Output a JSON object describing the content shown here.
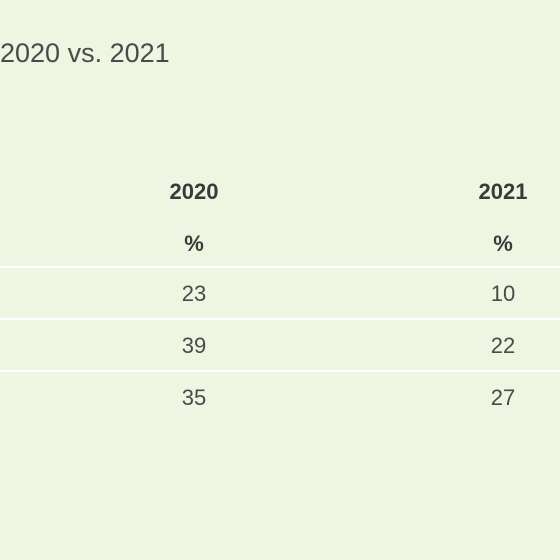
{
  "subtitle": "2020 vs. 2021",
  "colors": {
    "background": "#eef5e1",
    "rule": "#ffffff",
    "text": "#4a4a4a"
  },
  "chart_data": {
    "type": "table",
    "subtitle": "2020 vs. 2021",
    "columns": [
      {
        "header": "2020",
        "unit": "%"
      },
      {
        "header": "2021",
        "unit": "%"
      }
    ],
    "rows": [
      [
        "23",
        "10"
      ],
      [
        "39",
        "22"
      ],
      [
        "35",
        "27"
      ]
    ]
  }
}
